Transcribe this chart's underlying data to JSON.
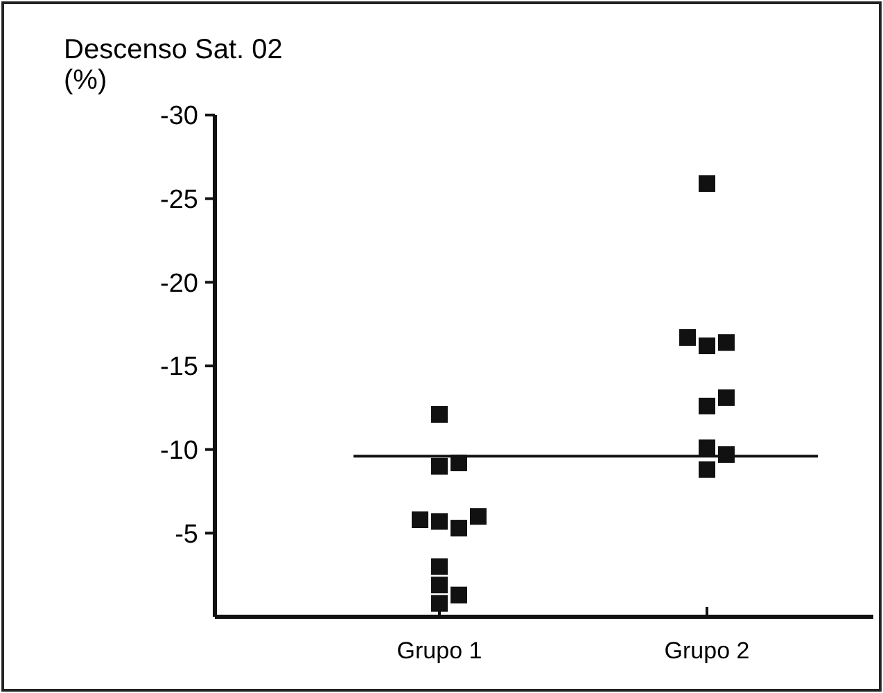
{
  "chart_data": {
    "type": "scatter",
    "ylabel": "Descenso Sat. 02\n(%)",
    "categories": [
      "Grupo 1",
      "Grupo 2"
    ],
    "ylim": [
      0,
      -30
    ],
    "yticks": [
      -30,
      -25,
      -20,
      -15,
      -10,
      -5
    ],
    "marker": "square",
    "grid": false,
    "series": [
      {
        "color": "#111111",
        "x": [
          "Grupo 1",
          "Grupo 1",
          "Grupo 1",
          "Grupo 1",
          "Grupo 1",
          "Grupo 1",
          "Grupo 1",
          "Grupo 1",
          "Grupo 1",
          "Grupo 1",
          "Grupo 1"
        ],
        "values": [
          -12.1,
          -9.0,
          -9.2,
          -5.7,
          -5.3,
          -5.8,
          -6.0,
          -3.0,
          -1.9,
          -1.3,
          -0.8
        ]
      },
      {
        "color": "#111111",
        "x": [
          "Grupo 2",
          "Grupo 2",
          "Grupo 2",
          "Grupo 2",
          "Grupo 2",
          "Grupo 2",
          "Grupo 2",
          "Grupo 2",
          "Grupo 2"
        ],
        "values": [
          -25.9,
          -16.2,
          -16.4,
          -16.7,
          -12.6,
          -13.1,
          -10.1,
          -9.7,
          -8.8
        ]
      }
    ],
    "ref_lines": [
      {
        "axis": "y",
        "value": -9.6,
        "color": "#111111"
      }
    ]
  }
}
